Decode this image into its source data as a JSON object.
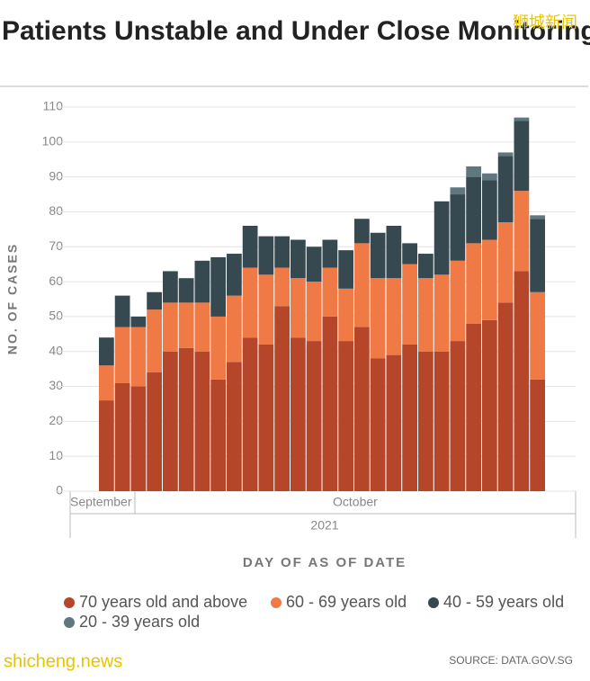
{
  "chart_data": {
    "type": "stacked-bar",
    "title": "Patients Unstable and Under Close Monitoring in ICU",
    "watermark": "狮城新闻",
    "y_label": "NO. OF CASES",
    "x_label": "DAY OF AS OF DATE",
    "months": [
      "September",
      "October"
    ],
    "year": "2021",
    "source": "SOURCE: DATA.GOV.SG",
    "site": "shicheng.news",
    "categories": [
      null,
      null,
      null,
      null,
      null,
      null,
      null,
      null,
      null,
      null,
      null,
      null,
      null,
      null,
      null,
      null,
      null,
      null,
      null,
      null,
      null,
      null,
      null,
      null,
      null,
      null,
      null,
      null
    ],
    "series": [
      {
        "name": "70 years old and above",
        "color": "#b5462a",
        "values": [
          26,
          31,
          30,
          34,
          40,
          41,
          40,
          32,
          37,
          44,
          42,
          53,
          44,
          43,
          50,
          43,
          47,
          38,
          39,
          42,
          40,
          40,
          43,
          48,
          49,
          54,
          63,
          32
        ]
      },
      {
        "name": "60 - 69 years old",
        "color": "#f07a45",
        "values": [
          10,
          16,
          17,
          18,
          14,
          13,
          14,
          18,
          19,
          20,
          20,
          11,
          17,
          17,
          14,
          15,
          24,
          23,
          22,
          23,
          21,
          22,
          23,
          23,
          23,
          23,
          23,
          25
        ]
      },
      {
        "name": "40 - 59 years old",
        "color": "#364850",
        "values": [
          8,
          9,
          3,
          5,
          9,
          7,
          12,
          17,
          12,
          12,
          11,
          9,
          11,
          10,
          8,
          11,
          7,
          13,
          15,
          6,
          7,
          21,
          19,
          19,
          17,
          19,
          20,
          21
        ]
      },
      {
        "name": "20 - 39 years old",
        "color": "#5f7880",
        "values": [
          0,
          0,
          0,
          0,
          0,
          0,
          0,
          0,
          0,
          0,
          0,
          0,
          0,
          0,
          0,
          0,
          0,
          0,
          0,
          0,
          0,
          0,
          2,
          3,
          2,
          1,
          1,
          1
        ]
      }
    ],
    "ylim": [
      0,
      110
    ],
    "yticks": [
      0,
      10,
      20,
      30,
      40,
      50,
      60,
      70,
      80,
      90,
      100,
      110
    ],
    "grid": true
  }
}
